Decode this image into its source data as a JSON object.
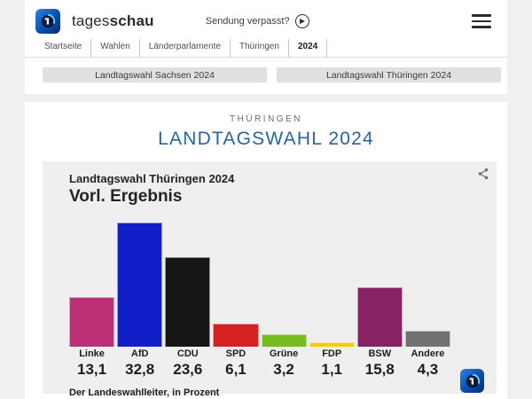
{
  "header": {
    "brand": {
      "name_regular": "tages",
      "name_bold": "schau"
    },
    "sendung_verpasst_label": "Sendung verpasst?",
    "breadcrumb": [
      "Startseite",
      "Wahlen",
      "Länderparlamente",
      "Thüringen",
      "2024"
    ],
    "nav_buttons": {
      "0": "Landtagswahl Sachsen 2024",
      "1": "Landtagswahl Thüringen 2024"
    }
  },
  "main": {
    "kicker": "THÜRINGEN",
    "title": "LANDTAGSWAHL 2024"
  },
  "chart_card": {
    "title": "Landtagswahl Thüringen 2024",
    "subtitle": "Vorl. Ergebnis",
    "source": "Der Landeswahlleiter, in Prozent"
  },
  "chart_data": {
    "type": "bar",
    "title": "Landtagswahl Thüringen 2024 – Vorl. Ergebnis",
    "categories": [
      "Linke",
      "AfD",
      "CDU",
      "SPD",
      "Grüne",
      "FDP",
      "BSW",
      "Andere"
    ],
    "values": [
      13.1,
      32.8,
      23.6,
      6.1,
      3.2,
      1.1,
      15.8,
      4.3
    ],
    "value_labels": [
      "13,1",
      "32,8",
      "23,6",
      "6,1",
      "3,2",
      "1,1",
      "15,8",
      "4,3"
    ],
    "bar_colors": [
      "#be3075",
      "#101fc8",
      "#161514",
      "#d32221",
      "#77bc1f",
      "#f8ca12",
      "#882264",
      "#717171"
    ],
    "unit": "Prozent",
    "ylim": [
      0,
      35.2
    ],
    "grid": false,
    "legend": "none",
    "source": "Der Landeswahlleiter, in Prozent"
  },
  "colors": {
    "accent_blue_title": "#2a649f",
    "card_background": "#efefef",
    "page_background": "#f0f0f0",
    "logo_blue": "#0b57b8"
  }
}
